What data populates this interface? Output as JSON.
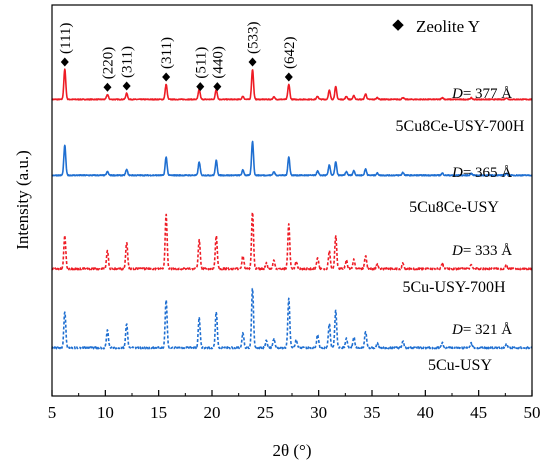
{
  "chart_data": {
    "type": "line",
    "xlabel": "2θ (°)",
    "ylabel": "Intensity (a.u.)",
    "xlim": [
      5,
      50
    ],
    "x_ticks": [
      "5",
      "10",
      "15",
      "20",
      "25",
      "30",
      "35",
      "40",
      "45",
      "50"
    ],
    "legend": {
      "marker": "◆",
      "label": "Zeolite Y",
      "position": "top-right"
    },
    "peak_labels": [
      {
        "x": 6.2,
        "text": "(111)"
      },
      {
        "x": 10.2,
        "text": "(220)"
      },
      {
        "x": 12.0,
        "text": "(311)"
      },
      {
        "x": 15.7,
        "text": "(311)"
      },
      {
        "x": 18.9,
        "text": "(511)"
      },
      {
        "x": 20.5,
        "text": "(440)"
      },
      {
        "x": 23.8,
        "text": "(533)"
      },
      {
        "x": 27.2,
        "text": "(642)"
      }
    ],
    "series": [
      {
        "name": "5Cu8Ce-USY-700H",
        "crystal_size": "D= 377 Å",
        "color": "#ee1c25",
        "style": "solid",
        "offset": 3.0,
        "peaks": [
          [
            6.2,
            1.0
          ],
          [
            10.2,
            0.16
          ],
          [
            12.0,
            0.2
          ],
          [
            15.7,
            0.5
          ],
          [
            18.8,
            0.33
          ],
          [
            20.4,
            0.33
          ],
          [
            22.9,
            0.1
          ],
          [
            23.8,
            1.0
          ],
          [
            25.8,
            0.08
          ],
          [
            27.2,
            0.5
          ],
          [
            29.9,
            0.1
          ],
          [
            31.0,
            0.3
          ],
          [
            31.6,
            0.42
          ],
          [
            32.6,
            0.1
          ],
          [
            33.3,
            0.12
          ],
          [
            34.4,
            0.18
          ],
          [
            35.5,
            0.06
          ],
          [
            37.9,
            0.06
          ],
          [
            41.6,
            0.06
          ],
          [
            44.3,
            0.05
          ],
          [
            47.6,
            0.05
          ]
        ]
      },
      {
        "name": "5Cu8Ce-USY",
        "crystal_size": "D= 365 Å",
        "color": "#1f6fd1",
        "style": "solid",
        "offset": 2.0,
        "peaks": [
          [
            6.2,
            0.85
          ],
          [
            10.2,
            0.1
          ],
          [
            12.0,
            0.16
          ],
          [
            15.7,
            0.52
          ],
          [
            18.8,
            0.38
          ],
          [
            20.4,
            0.42
          ],
          [
            22.9,
            0.15
          ],
          [
            23.8,
            0.97
          ],
          [
            25.8,
            0.1
          ],
          [
            27.2,
            0.52
          ],
          [
            29.9,
            0.12
          ],
          [
            31.0,
            0.3
          ],
          [
            31.6,
            0.38
          ],
          [
            32.6,
            0.1
          ],
          [
            33.3,
            0.13
          ],
          [
            34.4,
            0.18
          ],
          [
            35.5,
            0.06
          ],
          [
            37.9,
            0.08
          ],
          [
            41.6,
            0.06
          ],
          [
            44.3,
            0.05
          ],
          [
            47.6,
            0.05
          ]
        ]
      },
      {
        "name": "5Cu-USY-700H",
        "crystal_size": "D= 333 Å",
        "color": "#ee1c25",
        "style": "dashed",
        "offset": 1.0,
        "peaks": [
          [
            6.2,
            0.55
          ],
          [
            10.2,
            0.3
          ],
          [
            12.0,
            0.45
          ],
          [
            15.7,
            0.9
          ],
          [
            18.8,
            0.48
          ],
          [
            20.4,
            0.55
          ],
          [
            22.9,
            0.22
          ],
          [
            23.8,
            0.95
          ],
          [
            25.1,
            0.1
          ],
          [
            25.8,
            0.14
          ],
          [
            27.2,
            0.75
          ],
          [
            27.9,
            0.12
          ],
          [
            29.9,
            0.18
          ],
          [
            31.0,
            0.3
          ],
          [
            31.6,
            0.55
          ],
          [
            32.6,
            0.14
          ],
          [
            33.3,
            0.15
          ],
          [
            34.4,
            0.22
          ],
          [
            35.5,
            0.08
          ],
          [
            37.9,
            0.1
          ],
          [
            41.6,
            0.08
          ],
          [
            44.3,
            0.07
          ],
          [
            47.6,
            0.06
          ]
        ]
      },
      {
        "name": "5Cu-USY",
        "crystal_size": "D= 321 Å",
        "color": "#1f6fd1",
        "style": "dashed",
        "offset": 0.0,
        "peaks": [
          [
            6.2,
            0.6
          ],
          [
            10.2,
            0.3
          ],
          [
            12.0,
            0.4
          ],
          [
            15.7,
            0.8
          ],
          [
            18.8,
            0.5
          ],
          [
            20.4,
            0.6
          ],
          [
            22.9,
            0.25
          ],
          [
            23.8,
            1.0
          ],
          [
            25.1,
            0.12
          ],
          [
            25.8,
            0.15
          ],
          [
            27.2,
            0.82
          ],
          [
            27.9,
            0.14
          ],
          [
            29.9,
            0.22
          ],
          [
            31.0,
            0.4
          ],
          [
            31.6,
            0.62
          ],
          [
            32.6,
            0.15
          ],
          [
            33.3,
            0.18
          ],
          [
            34.4,
            0.28
          ],
          [
            35.5,
            0.08
          ],
          [
            37.9,
            0.12
          ],
          [
            41.6,
            0.08
          ],
          [
            44.3,
            0.08
          ],
          [
            47.6,
            0.07
          ]
        ]
      }
    ]
  }
}
